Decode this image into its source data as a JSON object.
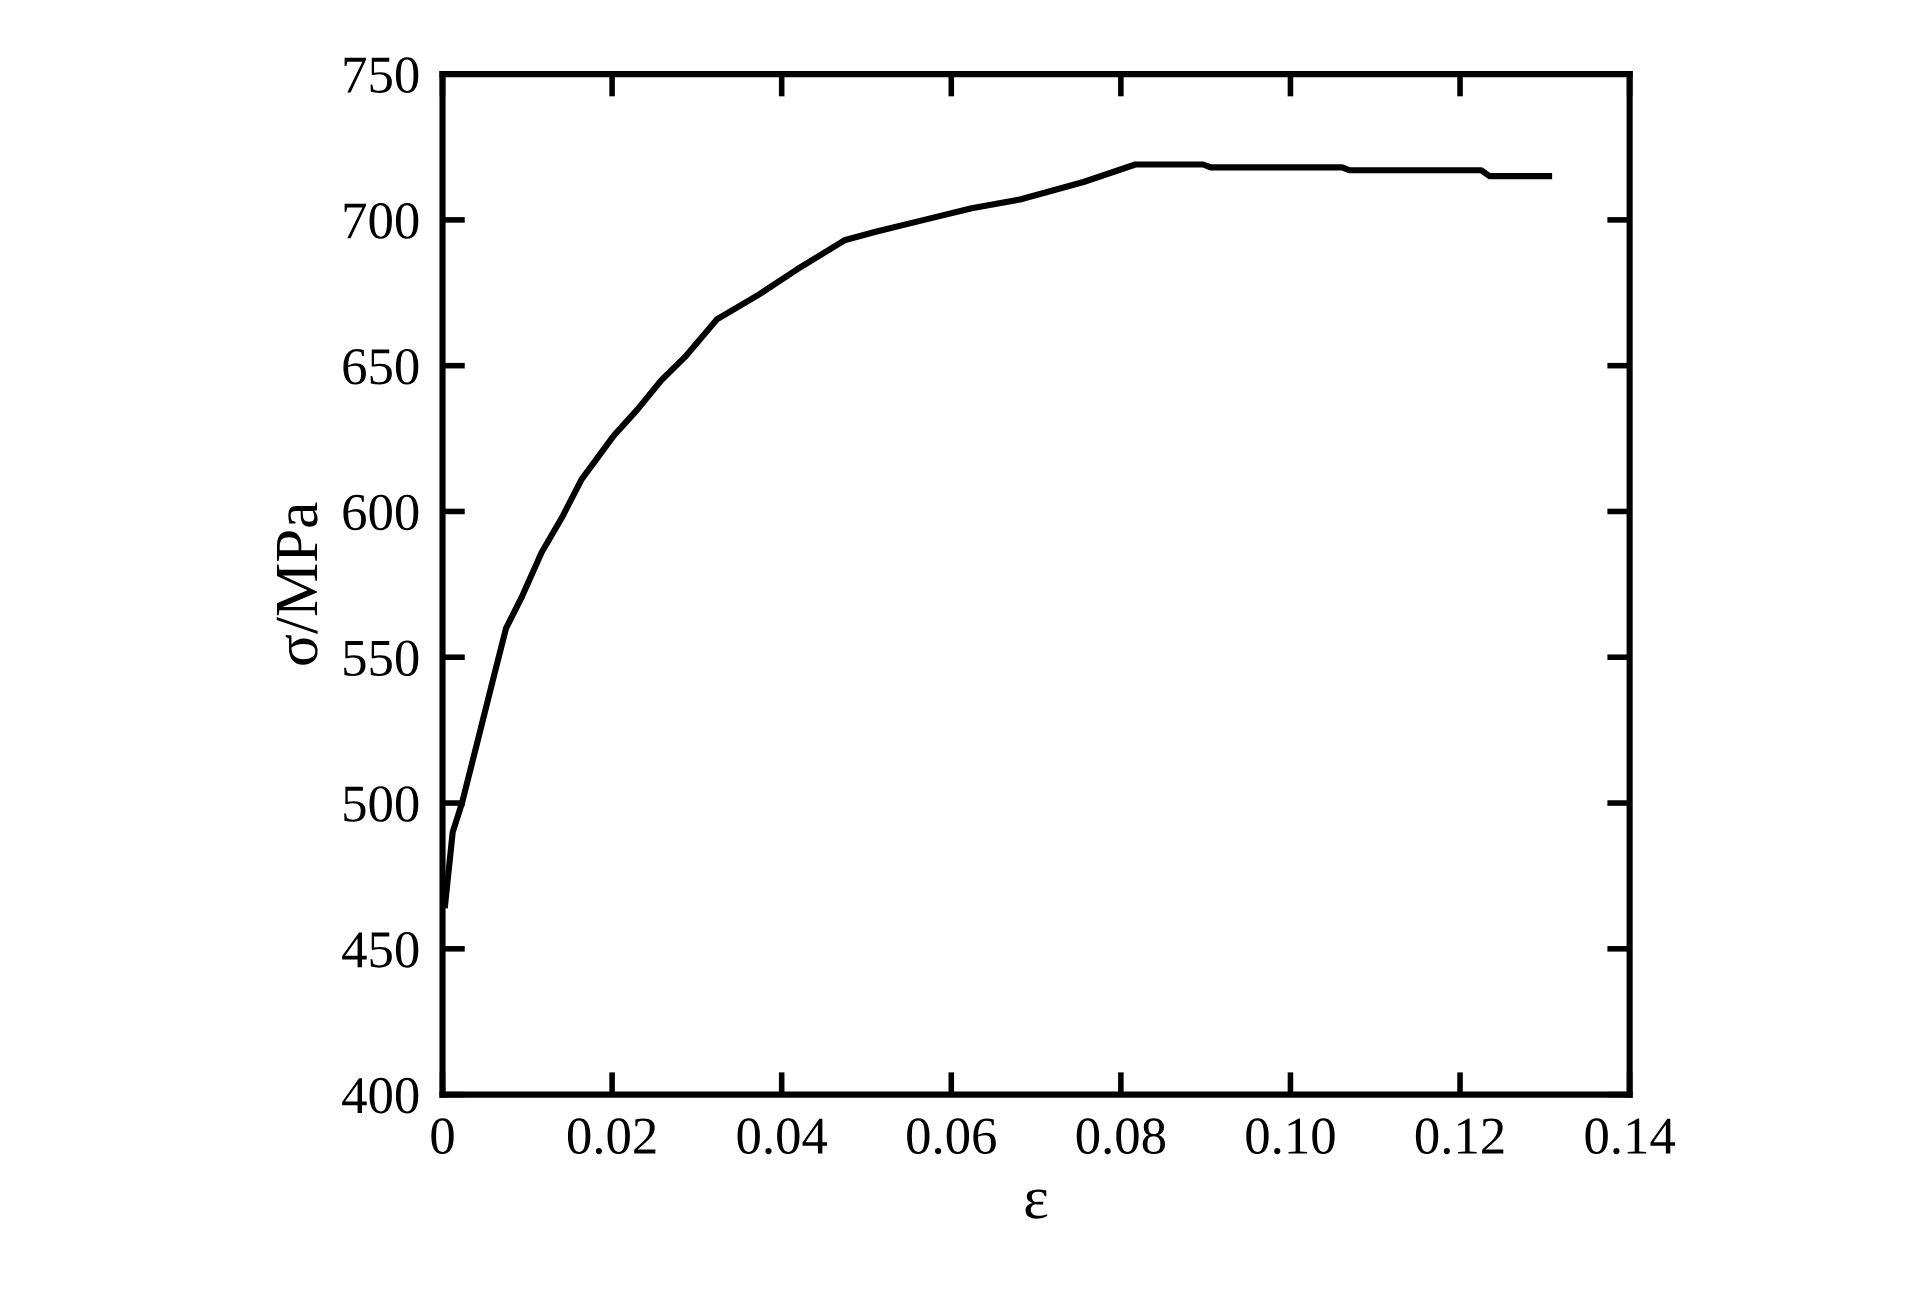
{
  "chart_data": {
    "type": "line",
    "xlabel": "ε",
    "ylabel": "σ/MPa",
    "xlim": [
      0,
      0.14
    ],
    "ylim": [
      400,
      750
    ],
    "xticks": [
      0,
      0.02,
      0.04,
      0.06,
      0.08,
      {
        "value": 0.1,
        "label": "0.10"
      },
      0.12,
      0.14
    ],
    "yticks": [
      400,
      450,
      500,
      550,
      600,
      650,
      700,
      750
    ],
    "grid": false,
    "legend": false,
    "marker": "none",
    "line_style": "solid",
    "series": [
      {
        "color": "#000000",
        "x": [
          0.0003,
          0.0012,
          0.0023,
          0.0042,
          0.0061,
          0.0075,
          0.0094,
          0.0117,
          0.0141,
          0.0164,
          0.0202,
          0.023,
          0.0258,
          0.0286,
          0.0324,
          0.0371,
          0.0418,
          0.0474,
          0.0512,
          0.0568,
          0.0624,
          0.0681,
          0.0756,
          0.0817,
          0.0897,
          0.0906,
          0.1061,
          0.107,
          0.1225,
          0.1235,
          0.1305
        ],
        "values": [
          465,
          490,
          500,
          522,
          544,
          560,
          571,
          586,
          598,
          611,
          626,
          635,
          645,
          653,
          666,
          674,
          683,
          693,
          696,
          700,
          704,
          707,
          713,
          719,
          719,
          718,
          718,
          717,
          717,
          715,
          715
        ]
      }
    ]
  }
}
